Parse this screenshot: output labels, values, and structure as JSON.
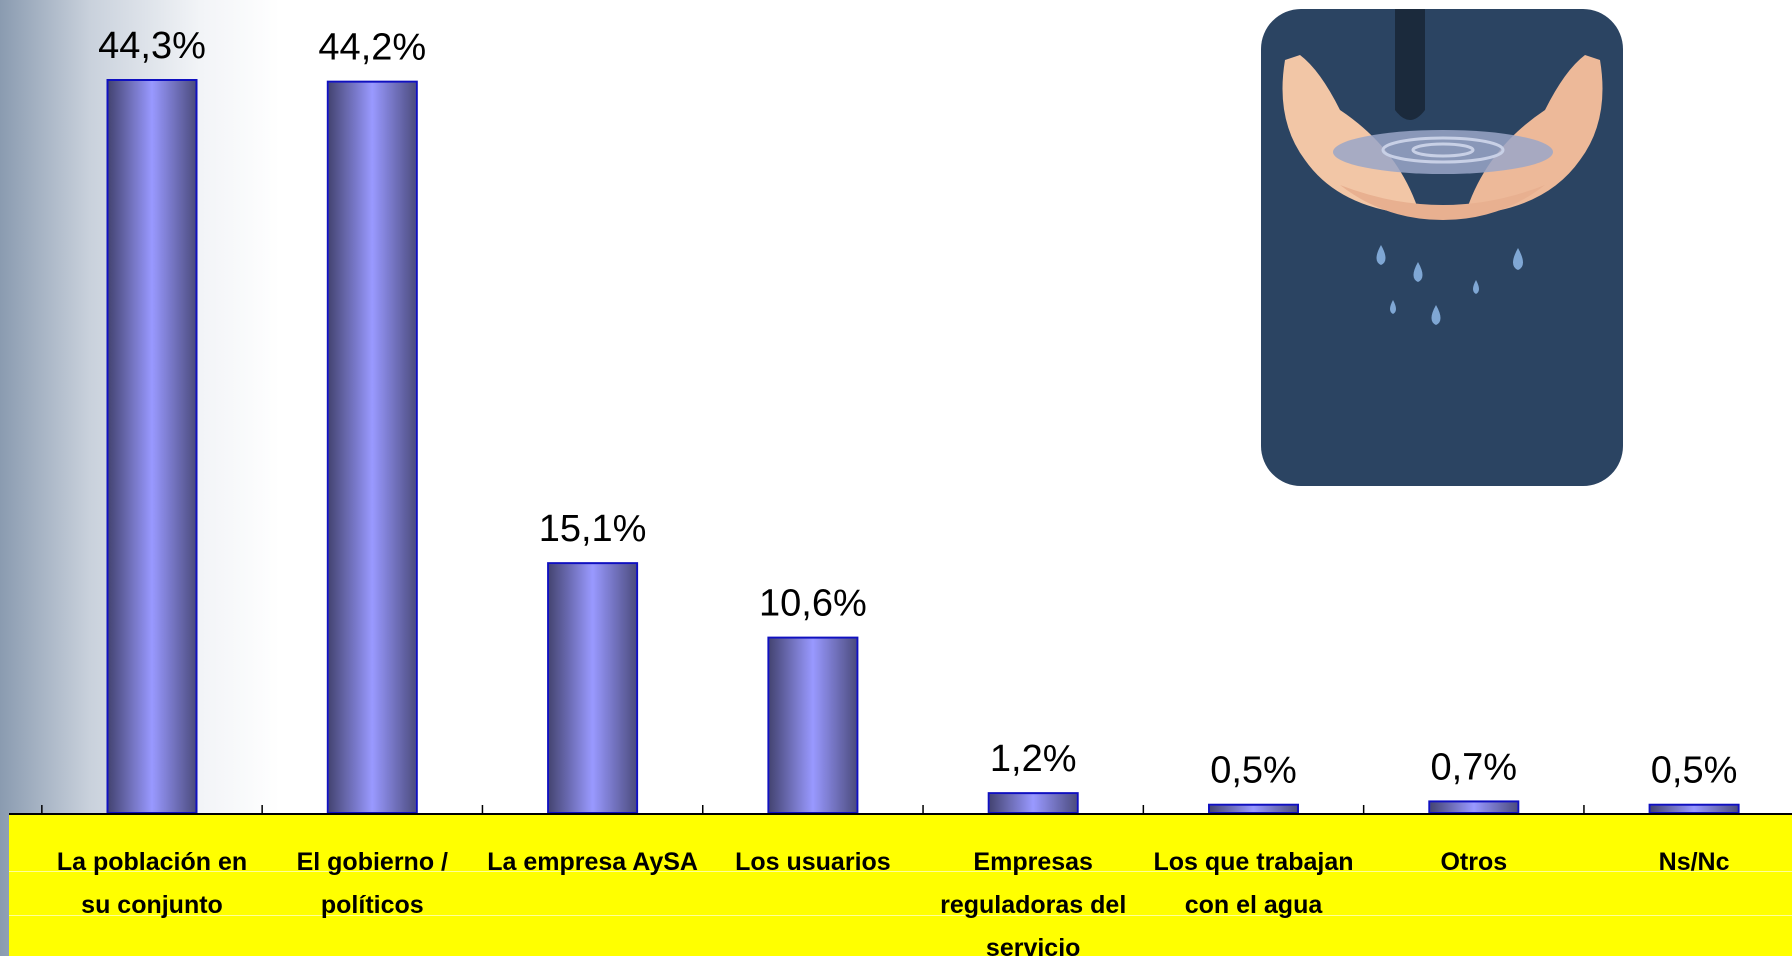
{
  "chart_data": {
    "type": "bar",
    "categories": [
      "La población en su conjunto",
      "El gobierno / políticos",
      "La empresa AySA",
      "Los usuarios",
      "Empresas reguladoras del servicio",
      "Los que trabajan con el agua",
      "Otros",
      "Ns/Nc"
    ],
    "values": [
      44.3,
      44.2,
      15.1,
      10.6,
      1.2,
      0.5,
      0.7,
      0.5
    ],
    "value_labels": [
      "44,3%",
      "44,2%",
      "15,1%",
      "10,6%",
      "1,2%",
      "0,5%",
      "0,7%",
      "0,5%"
    ],
    "color": "#9999ff"
  }
}
